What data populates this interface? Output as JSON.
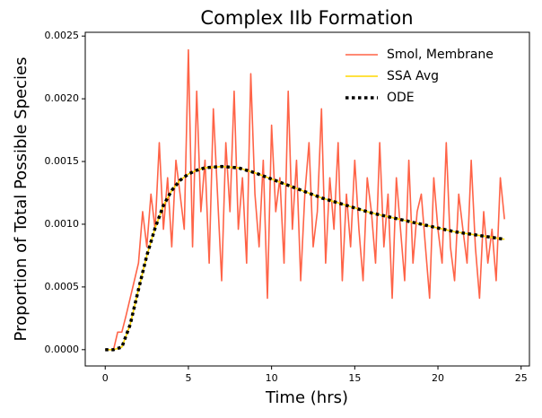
{
  "chart_data": {
    "type": "line",
    "title": "Complex IIb Formation",
    "x_label": "Time (hrs)",
    "y_label": "Proportion of Total Possible Species",
    "xlim": [
      -1.2,
      25.5
    ],
    "ylim": [
      -0.00013,
      0.00253
    ],
    "xticks": [
      0,
      5,
      10,
      15,
      20,
      25
    ],
    "yticks": [
      {
        "value": 0,
        "label": "0.0000"
      },
      {
        "value": 0.0005,
        "label": "0.0005"
      },
      {
        "value": 0.001,
        "label": "0.0010"
      },
      {
        "value": 0.0015,
        "label": "0.0015"
      },
      {
        "value": 0.002,
        "label": "0.0020"
      },
      {
        "value": 0.0025,
        "label": "0.0025"
      }
    ],
    "legend": "upper right",
    "series": [
      {
        "name": "Smol, Membrane",
        "color": "#ff6347",
        "style": "solid",
        "x": [
          0,
          0.25,
          0.5,
          0.75,
          1,
          1.25,
          1.5,
          1.75,
          2,
          2.25,
          2.5,
          2.75,
          3,
          3.25,
          3.5,
          3.75,
          4,
          4.25,
          4.5,
          4.75,
          5,
          5.25,
          5.5,
          5.75,
          6,
          6.25,
          6.5,
          6.75,
          7,
          7.25,
          7.5,
          7.75,
          8,
          8.25,
          8.5,
          8.75,
          9,
          9.25,
          9.5,
          9.75,
          10,
          10.25,
          10.5,
          10.75,
          11,
          11.25,
          11.5,
          11.75,
          12,
          12.25,
          12.5,
          12.75,
          13,
          13.25,
          13.5,
          13.75,
          14,
          14.25,
          14.5,
          14.75,
          15,
          15.25,
          15.5,
          15.75,
          16,
          16.25,
          16.5,
          16.75,
          17,
          17.25,
          17.5,
          17.75,
          18,
          18.25,
          18.5,
          18.75,
          19,
          19.25,
          19.5,
          19.75,
          20,
          20.25,
          20.5,
          20.75,
          21,
          21.25,
          21.5,
          21.75,
          22,
          22.25,
          22.5,
          22.75,
          23,
          23.25,
          23.5,
          23.75,
          24
        ],
        "values": [
          0,
          0,
          0,
          0.00014,
          0.00014,
          0.00027,
          0.00041,
          0.00055,
          0.00069,
          0.0011,
          0.00082,
          0.00124,
          0.00096,
          0.00165,
          0.00096,
          0.00137,
          0.00082,
          0.00151,
          0.00124,
          0.00096,
          0.00239,
          0.00082,
          0.00206,
          0.0011,
          0.00151,
          0.00069,
          0.00192,
          0.00124,
          0.00055,
          0.00165,
          0.0011,
          0.00206,
          0.00096,
          0.00137,
          0.00069,
          0.0022,
          0.00124,
          0.00082,
          0.00151,
          0.00041,
          0.00179,
          0.0011,
          0.00137,
          0.00069,
          0.00206,
          0.00096,
          0.00151,
          0.00055,
          0.00124,
          0.00165,
          0.00082,
          0.0011,
          0.00192,
          0.00069,
          0.00137,
          0.00096,
          0.00165,
          0.00055,
          0.00124,
          0.00082,
          0.00151,
          0.00096,
          0.00055,
          0.00137,
          0.0011,
          0.00069,
          0.00165,
          0.00082,
          0.00124,
          0.00041,
          0.00137,
          0.00096,
          0.00055,
          0.00151,
          0.00069,
          0.0011,
          0.00124,
          0.00082,
          0.00041,
          0.00137,
          0.00096,
          0.00069,
          0.00165,
          0.00082,
          0.00055,
          0.00124,
          0.00096,
          0.00069,
          0.00151,
          0.00082,
          0.00041,
          0.0011,
          0.00069,
          0.00096,
          0.00055,
          0.00137,
          0.00104
        ]
      },
      {
        "name": "SSA Avg",
        "color": "#ffd700",
        "style": "solid",
        "x": [
          0,
          0.5,
          1,
          1.5,
          2,
          2.5,
          3,
          3.5,
          4,
          4.5,
          5,
          5.5,
          6,
          7,
          8,
          9,
          10,
          11,
          12,
          13,
          14,
          15,
          16,
          17,
          18,
          19,
          20,
          21,
          22,
          23,
          24
        ],
        "values": [
          0,
          0,
          2e-05,
          0.0002,
          0.00048,
          0.00075,
          0.00097,
          0.00115,
          0.00127,
          0.00135,
          0.0014,
          0.00143,
          0.00145,
          0.00146,
          0.00145,
          0.00141,
          0.00136,
          0.00131,
          0.00126,
          0.00121,
          0.00117,
          0.00113,
          0.00109,
          0.00106,
          0.00103,
          0.001,
          0.00097,
          0.00094,
          0.00092,
          0.0009,
          0.00088
        ]
      },
      {
        "name": "ODE",
        "color": "#000000",
        "style": "dotted",
        "x": [
          0,
          0.5,
          1,
          1.5,
          2,
          2.5,
          3,
          3.5,
          4,
          4.5,
          5,
          5.5,
          6,
          7,
          8,
          9,
          10,
          11,
          12,
          13,
          14,
          15,
          16,
          17,
          18,
          19,
          20,
          21,
          22,
          23,
          24
        ],
        "values": [
          0,
          0,
          2e-05,
          0.0002,
          0.00048,
          0.00075,
          0.00097,
          0.00115,
          0.00127,
          0.00135,
          0.0014,
          0.00143,
          0.00145,
          0.00146,
          0.00145,
          0.00141,
          0.00136,
          0.00131,
          0.00126,
          0.00121,
          0.00117,
          0.00113,
          0.00109,
          0.00106,
          0.00103,
          0.001,
          0.00097,
          0.00094,
          0.00092,
          0.0009,
          0.00088
        ]
      }
    ]
  }
}
